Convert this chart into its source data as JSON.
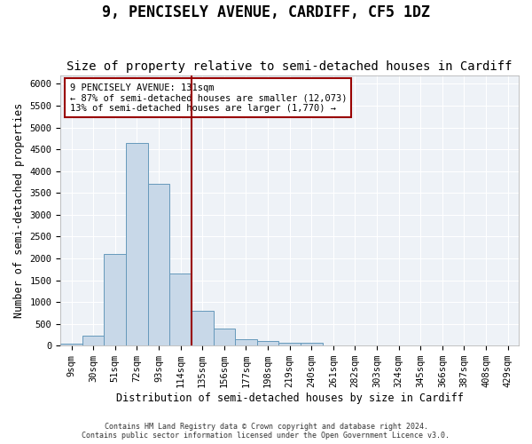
{
  "title": "9, PENCISELY AVENUE, CARDIFF, CF5 1DZ",
  "subtitle": "Size of property relative to semi-detached houses in Cardiff",
  "xlabel": "Distribution of semi-detached houses by size in Cardiff",
  "ylabel": "Number of semi-detached properties",
  "bin_labels": [
    "9sqm",
    "30sqm",
    "51sqm",
    "72sqm",
    "93sqm",
    "114sqm",
    "135sqm",
    "156sqm",
    "177sqm",
    "198sqm",
    "219sqm",
    "240sqm",
    "261sqm",
    "282sqm",
    "303sqm",
    "324sqm",
    "345sqm",
    "366sqm",
    "387sqm",
    "408sqm",
    "429sqm"
  ],
  "bar_heights": [
    50,
    230,
    2100,
    4650,
    3700,
    1650,
    790,
    390,
    155,
    100,
    65,
    65,
    0,
    0,
    0,
    0,
    0,
    0,
    0,
    0,
    0
  ],
  "bar_color": "#c8d8e8",
  "bar_edge_color": "#6699bb",
  "ylim": [
    0,
    6200
  ],
  "yticks": [
    0,
    500,
    1000,
    1500,
    2000,
    2500,
    3000,
    3500,
    4000,
    4500,
    5000,
    5500,
    6000
  ],
  "vline_color": "#990000",
  "vline_x": 5.5,
  "annotation_text": "9 PENCISELY AVENUE: 131sqm\n← 87% of semi-detached houses are smaller (12,073)\n13% of semi-detached houses are larger (1,770) →",
  "annotation_box_color": "#990000",
  "footer_line1": "Contains HM Land Registry data © Crown copyright and database right 2024.",
  "footer_line2": "Contains public sector information licensed under the Open Government Licence v3.0.",
  "bg_color": "#eef2f7",
  "grid_color": "#ffffff",
  "title_fontsize": 12,
  "subtitle_fontsize": 10,
  "label_fontsize": 8.5,
  "tick_fontsize": 7.5,
  "footer_fontsize": 6
}
